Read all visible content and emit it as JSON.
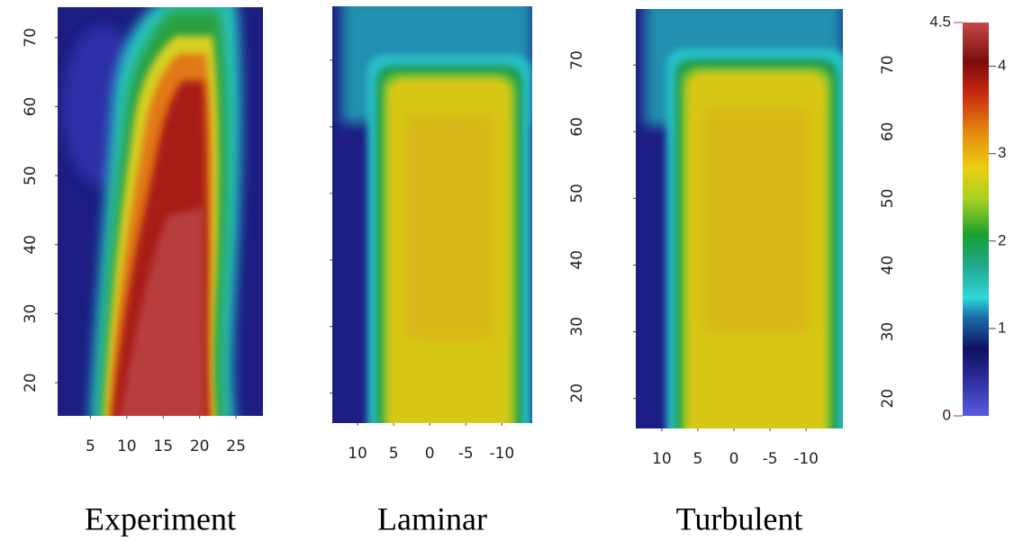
{
  "chart_data": [
    {
      "type": "heatmap",
      "caption": "Experiment",
      "xlim": [
        0.5,
        28.7
      ],
      "xticks": [
        5,
        10,
        15,
        20,
        25
      ],
      "ylim": [
        15.2,
        74.4
      ],
      "yticks": [
        20,
        30,
        40,
        50,
        60,
        70
      ]
    },
    {
      "type": "heatmap",
      "caption": "Laminar",
      "xlim": [
        13.5,
        -14.2
      ],
      "xticks": [
        10,
        5,
        0,
        -5,
        -10
      ],
      "ylim": [
        15.5,
        78.1
      ],
      "yticks": [
        20,
        30,
        40,
        50,
        60,
        70
      ]
    },
    {
      "type": "heatmap",
      "caption": "Turbulent",
      "xlim": [
        13.6,
        -15.1
      ],
      "xticks": [
        10,
        5,
        0,
        -5,
        -10
      ],
      "ylim": [
        15.5,
        78.4
      ],
      "yticks": [
        20,
        30,
        40,
        50,
        60,
        70
      ]
    },
    {
      "type": "colorbar",
      "ylim": [
        0,
        4.5
      ],
      "yticks": [
        0,
        1,
        2,
        3,
        4,
        4.5
      ]
    }
  ]
}
